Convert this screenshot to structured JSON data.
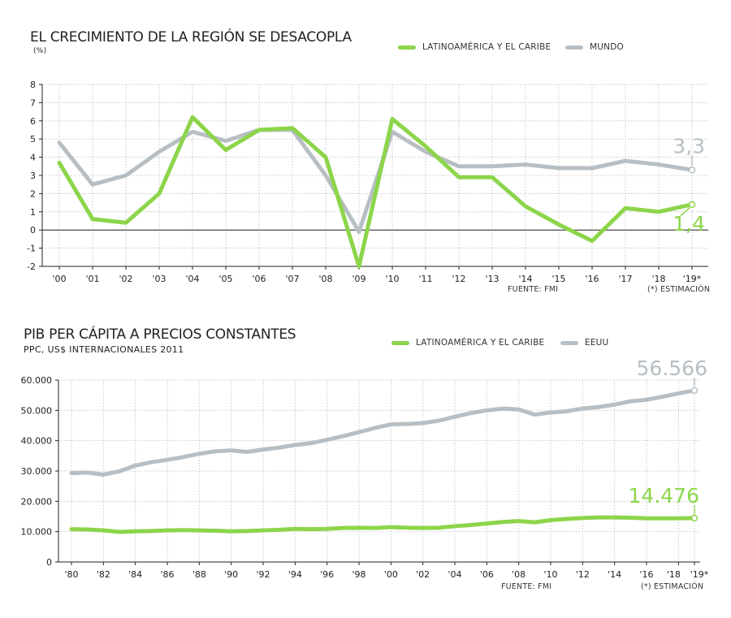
{
  "colors": {
    "green": "#8cd54a",
    "gray": "#b7bfc4",
    "grid": "#c8c8c8",
    "axis": "#222222"
  },
  "chart_data": [
    {
      "type": "line",
      "title": "EL CRECIMIENTO DE LA REGIÓN SE DESACOPLA",
      "subtitle": "(%)",
      "categories": [
        "'00",
        "'01",
        "'02",
        "'03",
        "'04",
        "'05",
        "'06",
        "'07",
        "'08",
        "'09",
        "'10",
        "'11",
        "'12",
        "'13",
        "'14",
        "'15",
        "'16",
        "'17",
        "'18",
        "'19*"
      ],
      "series": [
        {
          "name": "LATINOAMÉRICA Y EL CARIBE",
          "color": "green",
          "values": [
            3.7,
            0.6,
            0.4,
            2.0,
            6.2,
            4.4,
            5.5,
            5.6,
            4.0,
            -2.0,
            6.1,
            4.6,
            2.9,
            2.9,
            1.3,
            0.3,
            -0.6,
            1.2,
            1.0,
            1.4
          ]
        },
        {
          "name": "MUNDO",
          "color": "gray",
          "values": [
            4.8,
            2.5,
            3.0,
            4.3,
            5.4,
            4.9,
            5.5,
            5.5,
            3.0,
            -0.1,
            5.4,
            4.3,
            3.5,
            3.5,
            3.6,
            3.4,
            3.4,
            3.8,
            3.6,
            3.3
          ]
        }
      ],
      "ylim": [
        -2,
        8
      ],
      "yticks": [
        "-2",
        "-1",
        "0",
        "1",
        "2",
        "3",
        "4",
        "5",
        "6",
        "7",
        "8"
      ],
      "grid": true,
      "legend": "top-right",
      "end_labels": {
        "LATINOAMÉRICA Y EL CARIBE": "1,4",
        "MUNDO": "3,3"
      },
      "source": "FUENTE: FMI",
      "note": "(*) ESTIMACIÓN"
    },
    {
      "type": "line",
      "title": "PIB PER CÁPITA A PRECIOS CONSTANTES",
      "subtitle": "PPC, US$ INTERNACIONALES 2011",
      "x": [
        1980,
        1981,
        1982,
        1983,
        1984,
        1985,
        1986,
        1987,
        1988,
        1989,
        1990,
        1991,
        1992,
        1993,
        1994,
        1995,
        1996,
        1997,
        1998,
        1999,
        2000,
        2001,
        2002,
        2003,
        2004,
        2005,
        2006,
        2007,
        2008,
        2009,
        2010,
        2011,
        2012,
        2013,
        2014,
        2015,
        2016,
        2017,
        2018,
        2019
      ],
      "xticks": [
        "'80",
        "'82",
        "'84",
        "'86",
        "'88",
        "'90",
        "'92",
        "'94",
        "'96",
        "'98",
        "'00",
        "'02",
        "'04",
        "'06",
        "'08",
        "'10",
        "'12",
        "'14",
        "'16",
        "'18",
        "'19*"
      ],
      "series": [
        {
          "name": "LATINOAMÉRICA Y EL CARIBE",
          "color": "green",
          "values": [
            10800,
            10700,
            10400,
            9900,
            10100,
            10200,
            10400,
            10500,
            10400,
            10300,
            10100,
            10200,
            10400,
            10600,
            10900,
            10800,
            10900,
            11200,
            11300,
            11200,
            11500,
            11300,
            11200,
            11300,
            11800,
            12200,
            12700,
            13200,
            13500,
            13100,
            13800,
            14200,
            14500,
            14700,
            14700,
            14600,
            14400,
            14400,
            14400,
            14476
          ]
        },
        {
          "name": "EEUU",
          "color": "gray",
          "values": [
            29300,
            29500,
            28800,
            29900,
            31800,
            32900,
            33700,
            34600,
            35700,
            36500,
            36800,
            36300,
            37100,
            37700,
            38600,
            39200,
            40300,
            41500,
            42800,
            44200,
            45400,
            45500,
            45800,
            46600,
            47900,
            49100,
            50000,
            50600,
            50300,
            48600,
            49300,
            49700,
            50600,
            51100,
            51900,
            53000,
            53500,
            54500,
            55600,
            56566
          ]
        }
      ],
      "ylim": [
        0,
        60000
      ],
      "yticks": [
        "0",
        "10.000",
        "20.000",
        "30.000",
        "40.000",
        "50.000",
        "60.000"
      ],
      "grid": true,
      "legend": "top-right",
      "end_labels": {
        "LATINOAMÉRICA Y EL CARIBE": "14.476",
        "EEUU": "56.566"
      },
      "source": "FUENTE: FMI",
      "note": "(*) ESTIMACIÓN"
    }
  ]
}
